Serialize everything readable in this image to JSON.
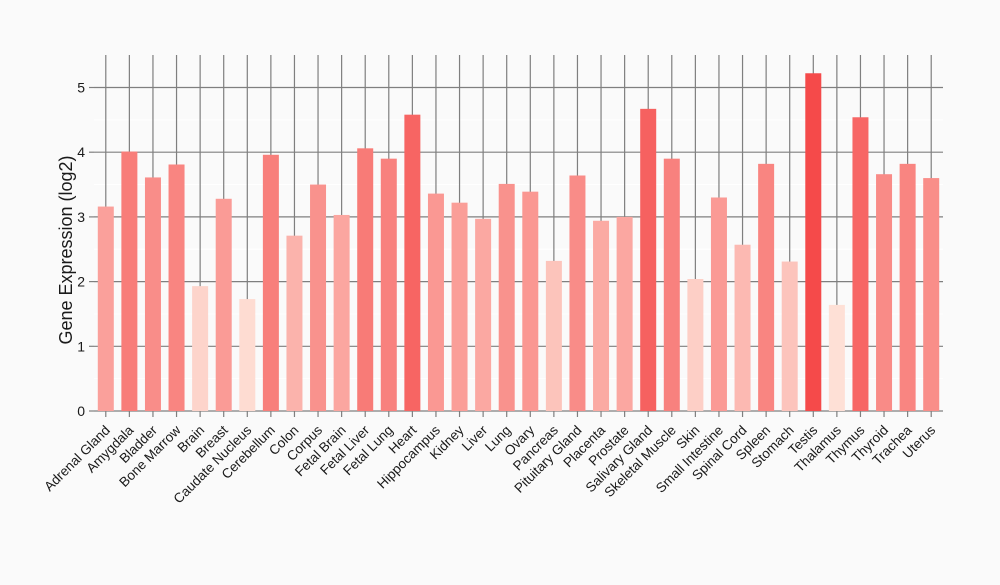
{
  "chart_data": {
    "type": "bar",
    "title": "",
    "xlabel": "",
    "ylabel": "Gene Expression (log2)",
    "ylim": [
      0,
      5.5
    ],
    "yticks": [
      0,
      1,
      2,
      3,
      4,
      5
    ],
    "grid": true,
    "categories": [
      "Adrenal Gland",
      "Amygdala",
      "Bladder",
      "Bone Marrow",
      "Brain",
      "Breast",
      "Caudate Nucleus",
      "Cerebellum",
      "Colon",
      "Corpus",
      "Fetal Brain",
      "Fetal Liver",
      "Fetal Lung",
      "Heart",
      "Hippocampus",
      "Kidney",
      "Liver",
      "Lung",
      "Ovary",
      "Pancreas",
      "Pituitary Gland",
      "Placenta",
      "Prostate",
      "Salivary Gland",
      "Skeletal Muscle",
      "Skin",
      "Small Intestine",
      "Spinal Cord",
      "Spleen",
      "Stomach",
      "Testis",
      "Thalamus",
      "Thymus",
      "Thyroid",
      "Trachea",
      "Uterus"
    ],
    "values": [
      3.16,
      4.01,
      3.61,
      3.81,
      1.93,
      3.28,
      1.73,
      3.96,
      2.71,
      3.5,
      3.03,
      4.06,
      3.9,
      4.58,
      3.36,
      3.22,
      2.97,
      3.51,
      3.39,
      2.32,
      3.64,
      2.94,
      3.0,
      4.67,
      3.9,
      2.04,
      3.3,
      2.57,
      3.82,
      2.31,
      5.22,
      1.64,
      4.54,
      3.66,
      3.82,
      3.6
    ],
    "color_low": "#fee0d6",
    "color_high": "#f54a4a"
  }
}
